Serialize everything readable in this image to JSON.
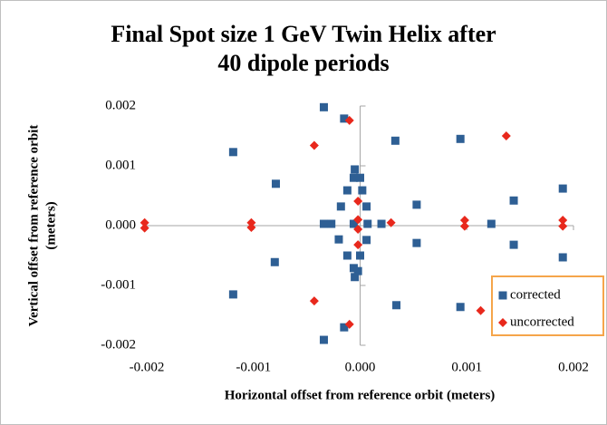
{
  "chart_data": {
    "type": "scatter",
    "title": "Final Spot size 1 GeV Twin Helix after",
    "subtitle": "40 dipole periods",
    "x_label": "Horizontal offset from reference orbit (meters)",
    "y_label": [
      "Vertical offset from reference orbit",
      "(meters)"
    ],
    "xlim": [
      -0.002,
      0.002
    ],
    "ylim": [
      -0.002,
      0.002
    ],
    "xticks": [
      -0.002,
      -0.001,
      {
        "value": 0,
        "label": "0.000"
      },
      0.001,
      0.002
    ],
    "yticks": [
      -0.002,
      -0.001,
      {
        "value": 0,
        "label": "0.000"
      },
      0.001,
      0.002
    ],
    "legend": "right",
    "series": [
      {
        "name": "corrected",
        "color": "#2e5f94",
        "marker": "square",
        "x": [
          -0.00034,
          -0.00015,
          -0.00119,
          0.00033,
          0.00094,
          -0.00079,
          -5e-05,
          -6e-05,
          0.0,
          -0.00012,
          2e-05,
          -0.00018,
          6e-05,
          0.00053,
          0.00144,
          0.0019,
          -0.00034,
          -0.00027,
          -6e-05,
          7e-05,
          0.0002,
          0.00123,
          -0.0002,
          6e-05,
          0.00053,
          0.00144,
          0.0019,
          -0.00012,
          0.0,
          -6e-05,
          -2e-05,
          -5e-05,
          -0.0008,
          -0.00119,
          0.00034,
          0.00094,
          -0.00015,
          -0.00034
        ],
        "values": [
          0.00198,
          0.00179,
          0.00123,
          0.00142,
          0.00145,
          0.0007,
          0.00094,
          0.0008,
          0.0008,
          0.00059,
          0.00059,
          0.00032,
          0.00032,
          0.00035,
          0.00042,
          0.00062,
          3e-05,
          3e-05,
          3e-05,
          3e-05,
          3e-05,
          3e-05,
          -0.00023,
          -0.00024,
          -0.00029,
          -0.00032,
          -0.00053,
          -0.0005,
          -0.0005,
          -0.00071,
          -0.00076,
          -0.00086,
          -0.00061,
          -0.00115,
          -0.00133,
          -0.00136,
          -0.0017,
          -0.00191
        ]
      },
      {
        "name": "uncorrected",
        "color": "#e8281c",
        "marker": "diamond",
        "x": [
          -0.00202,
          -0.00202,
          -0.00102,
          -0.00102,
          -0.00043,
          -0.0001,
          0.00137,
          -2e-05,
          -2e-05,
          -2e-05,
          -2e-05,
          0.00029,
          0.00098,
          0.00098,
          0.0019,
          0.0019,
          -0.00043,
          -0.0001,
          0.00113
        ],
        "values": [
          5e-05,
          -4e-05,
          5e-05,
          -3e-05,
          0.00134,
          0.00176,
          0.0015,
          0.00041,
          0.0001,
          -6e-05,
          -0.00032,
          5e-05,
          9e-05,
          -1e-05,
          9e-05,
          -1e-05,
          -0.00126,
          -0.00165,
          -0.00142
        ]
      }
    ]
  }
}
